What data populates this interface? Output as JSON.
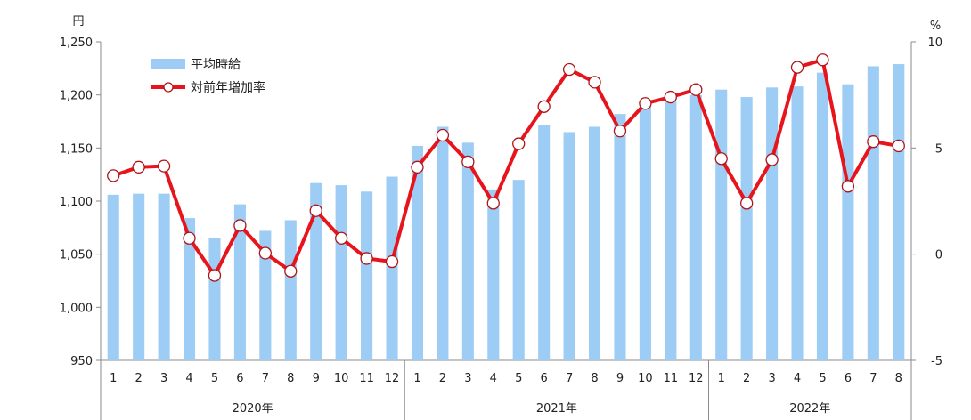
{
  "chart_data": {
    "type": "bar+line",
    "categories": [
      "1",
      "2",
      "3",
      "4",
      "5",
      "6",
      "7",
      "8",
      "9",
      "10",
      "11",
      "12",
      "1",
      "2",
      "3",
      "4",
      "5",
      "6",
      "7",
      "8",
      "9",
      "10",
      "11",
      "12",
      "1",
      "2",
      "3",
      "4",
      "5",
      "6",
      "7",
      "8"
    ],
    "year_groups": [
      {
        "label": "2020年",
        "count": 12
      },
      {
        "label": "2021年",
        "count": 12
      },
      {
        "label": "2022年",
        "count": 8
      }
    ],
    "series": [
      {
        "name": "平均時給",
        "type": "bar",
        "axis": "left",
        "color": "#9DCCF5",
        "values": [
          1106,
          1107,
          1107,
          1084,
          1065,
          1097,
          1072,
          1082,
          1117,
          1115,
          1109,
          1123,
          1152,
          1170,
          1155,
          1111,
          1120,
          1172,
          1165,
          1170,
          1182,
          1190,
          1195,
          1200,
          1205,
          1198,
          1207,
          1208,
          1221,
          1210,
          1227,
          1229
        ]
      },
      {
        "name": "対前年増加率",
        "type": "line",
        "axis": "right",
        "color": "#E8141C",
        "values": [
          3.7,
          4.1,
          4.15,
          0.75,
          -1.0,
          1.35,
          0.05,
          -0.8,
          2.05,
          0.75,
          -0.2,
          -0.35,
          4.1,
          5.6,
          4.35,
          2.4,
          5.2,
          6.95,
          8.7,
          8.1,
          5.8,
          7.1,
          7.4,
          7.75,
          4.5,
          2.4,
          4.45,
          8.8,
          9.15,
          3.2,
          5.3,
          5.1
        ]
      }
    ],
    "y_left": {
      "unit": "円",
      "min": 950,
      "max": 1250,
      "ticks": [
        950,
        1000,
        1050,
        1100,
        1150,
        1200,
        1250
      ],
      "tick_labels": [
        "950",
        "1,000",
        "1,050",
        "1,100",
        "1,150",
        "1,200",
        "1,250"
      ]
    },
    "y_right": {
      "unit": "%",
      "min": -5,
      "max": 10,
      "ticks": [
        -5,
        0,
        5,
        10
      ],
      "tick_labels": [
        "-5",
        "0",
        "5",
        "10"
      ]
    },
    "legend_position": "top-left",
    "grid": false
  }
}
